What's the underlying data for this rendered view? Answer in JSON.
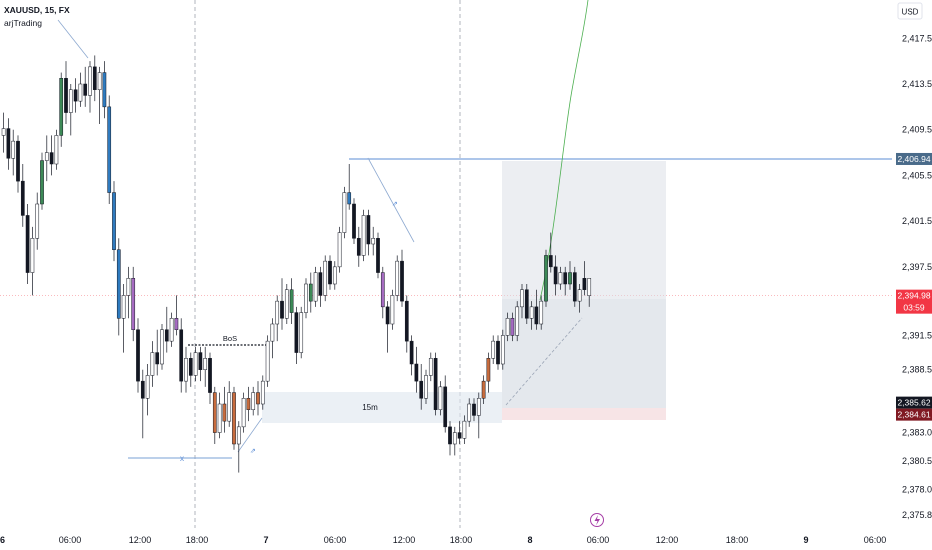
{
  "header": {
    "symbol_line": "XAUUSD, 15, FX",
    "indicator": "arjTrading"
  },
  "currency_button": "USD",
  "price_axis": {
    "ticks": [
      "2,417.50",
      "2,413.50",
      "2,409.50",
      "2,405.50",
      "2,401.50",
      "2,397.50",
      "2,391.50",
      "2,388.50",
      "2,383.00",
      "2,380.50",
      "2,378.00",
      "2,375.80"
    ],
    "tick_values": [
      2417.5,
      2413.5,
      2409.5,
      2405.5,
      2401.5,
      2397.5,
      2391.5,
      2388.5,
      2383.0,
      2380.5,
      2378.0,
      2375.8
    ]
  },
  "time_axis": {
    "labels": [
      "6",
      "06:00",
      "12:00",
      "18:00",
      "7",
      "06:00",
      "12:00",
      "18:00",
      "8",
      "06:00",
      "12:00",
      "18:00",
      "9",
      "06:00"
    ],
    "bold": [
      true,
      false,
      false,
      false,
      true,
      false,
      false,
      false,
      true,
      false,
      false,
      false,
      true,
      false
    ]
  },
  "badges": {
    "target": {
      "text": "2,406.94",
      "value": 2406.94,
      "color": "#4a6b8a"
    },
    "current": {
      "price": "2,394.98",
      "countdown": "03:59",
      "value": 2394.98,
      "color": "#f23645"
    },
    "stop1": {
      "text": "2,385.62",
      "value": 2385.62,
      "color": "#131722"
    },
    "stop2": {
      "text": "2,384.61",
      "value": 2384.61,
      "color": "#801922"
    }
  },
  "annotations": {
    "bos": "BoS",
    "fvg": "15m",
    "x_mark": "x"
  },
  "colors": {
    "up": "#ffffff",
    "down": "#131722",
    "wick": "#131722",
    "blue": "#2f7bbf",
    "purple": "#a66bc1",
    "green": "#3d8a57",
    "orange": "#c86c3d",
    "target_line": "#5b8dd6",
    "projection": "#4caf50"
  },
  "chart_data": {
    "type": "candlestick",
    "symbol": "XAUUSD",
    "timeframe": "15",
    "exchange": "FX",
    "y_range": [
      2375.0,
      2420.5
    ],
    "target_level": 2406.94,
    "current_price": 2394.98,
    "stop_levels": [
      2385.62,
      2384.61
    ],
    "candles": [
      {
        "o": 2409.0,
        "h": 2411.0,
        "l": 2407.5,
        "c": 2409.6,
        "col": "up"
      },
      {
        "o": 2409.6,
        "h": 2410.5,
        "l": 2406.0,
        "c": 2407.0,
        "col": "down"
      },
      {
        "o": 2407.0,
        "h": 2409.5,
        "l": 2405.5,
        "c": 2408.5,
        "col": "up"
      },
      {
        "o": 2408.5,
        "h": 2409.0,
        "l": 2404.0,
        "c": 2405.0,
        "col": "down"
      },
      {
        "o": 2405.0,
        "h": 2406.5,
        "l": 2401.0,
        "c": 2402.0,
        "col": "down"
      },
      {
        "o": 2402.0,
        "h": 2403.0,
        "l": 2396.0,
        "c": 2397.0,
        "col": "down"
      },
      {
        "o": 2397.0,
        "h": 2401.0,
        "l": 2395.0,
        "c": 2400.0,
        "col": "up"
      },
      {
        "o": 2400.0,
        "h": 2404.0,
        "l": 2399.0,
        "c": 2403.0,
        "col": "up"
      },
      {
        "o": 2403.0,
        "h": 2407.5,
        "l": 2402.5,
        "c": 2406.8,
        "col": "green"
      },
      {
        "o": 2406.8,
        "h": 2409.0,
        "l": 2405.0,
        "c": 2407.5,
        "col": "up"
      },
      {
        "o": 2407.5,
        "h": 2409.0,
        "l": 2405.5,
        "c": 2406.5,
        "col": "down"
      },
      {
        "o": 2406.5,
        "h": 2409.5,
        "l": 2406.0,
        "c": 2409.0,
        "col": "up"
      },
      {
        "o": 2409.0,
        "h": 2414.5,
        "l": 2408.0,
        "c": 2414.0,
        "col": "green"
      },
      {
        "o": 2414.0,
        "h": 2415.5,
        "l": 2410.0,
        "c": 2411.0,
        "col": "down"
      },
      {
        "o": 2411.0,
        "h": 2413.5,
        "l": 2409.0,
        "c": 2413.0,
        "col": "up"
      },
      {
        "o": 2413.0,
        "h": 2414.0,
        "l": 2411.0,
        "c": 2412.0,
        "col": "down"
      },
      {
        "o": 2412.0,
        "h": 2414.5,
        "l": 2411.5,
        "c": 2413.5,
        "col": "up"
      },
      {
        "o": 2413.5,
        "h": 2415.0,
        "l": 2411.5,
        "c": 2412.5,
        "col": "down"
      },
      {
        "o": 2412.5,
        "h": 2415.5,
        "l": 2411.0,
        "c": 2415.0,
        "col": "up"
      },
      {
        "o": 2415.0,
        "h": 2416.0,
        "l": 2412.0,
        "c": 2413.0,
        "col": "down"
      },
      {
        "o": 2413.0,
        "h": 2415.0,
        "l": 2410.0,
        "c": 2414.5,
        "col": "up"
      },
      {
        "o": 2414.5,
        "h": 2415.5,
        "l": 2410.5,
        "c": 2411.5,
        "col": "blue"
      },
      {
        "o": 2411.5,
        "h": 2412.5,
        "l": 2403.0,
        "c": 2404.0,
        "col": "blue"
      },
      {
        "o": 2404.0,
        "h": 2405.0,
        "l": 2398.0,
        "c": 2399.0,
        "col": "blue"
      },
      {
        "o": 2399.0,
        "h": 2400.0,
        "l": 2391.5,
        "c": 2393.0,
        "col": "blue"
      },
      {
        "o": 2393.0,
        "h": 2396.0,
        "l": 2390.0,
        "c": 2395.0,
        "col": "up"
      },
      {
        "o": 2395.0,
        "h": 2397.5,
        "l": 2393.0,
        "c": 2396.5,
        "col": "up"
      },
      {
        "o": 2396.5,
        "h": 2397.5,
        "l": 2391.0,
        "c": 2392.0,
        "col": "purple"
      },
      {
        "o": 2392.0,
        "h": 2393.0,
        "l": 2386.5,
        "c": 2387.5,
        "col": "down"
      },
      {
        "o": 2387.5,
        "h": 2388.5,
        "l": 2382.5,
        "c": 2386.0,
        "col": "down"
      },
      {
        "o": 2386.0,
        "h": 2389.0,
        "l": 2384.5,
        "c": 2388.0,
        "col": "up"
      },
      {
        "o": 2388.0,
        "h": 2391.0,
        "l": 2387.0,
        "c": 2390.0,
        "col": "up"
      },
      {
        "o": 2390.0,
        "h": 2392.0,
        "l": 2388.0,
        "c": 2389.0,
        "col": "down"
      },
      {
        "o": 2389.0,
        "h": 2392.5,
        "l": 2388.5,
        "c": 2392.0,
        "col": "up"
      },
      {
        "o": 2392.0,
        "h": 2394.0,
        "l": 2390.0,
        "c": 2391.0,
        "col": "down"
      },
      {
        "o": 2391.0,
        "h": 2393.5,
        "l": 2390.5,
        "c": 2393.0,
        "col": "up"
      },
      {
        "o": 2393.0,
        "h": 2395.0,
        "l": 2391.5,
        "c": 2392.0,
        "col": "purple"
      },
      {
        "o": 2392.0,
        "h": 2393.0,
        "l": 2386.5,
        "c": 2387.5,
        "col": "down"
      },
      {
        "o": 2387.5,
        "h": 2390.5,
        "l": 2386.5,
        "c": 2389.5,
        "col": "up"
      },
      {
        "o": 2389.5,
        "h": 2390.0,
        "l": 2387.0,
        "c": 2388.0,
        "col": "down"
      },
      {
        "o": 2388.0,
        "h": 2390.5,
        "l": 2387.5,
        "c": 2390.0,
        "col": "up"
      },
      {
        "o": 2390.0,
        "h": 2390.5,
        "l": 2387.5,
        "c": 2388.5,
        "col": "down"
      },
      {
        "o": 2388.5,
        "h": 2390.5,
        "l": 2387.0,
        "c": 2389.5,
        "col": "up"
      },
      {
        "o": 2389.5,
        "h": 2390.0,
        "l": 2385.5,
        "c": 2386.5,
        "col": "down"
      },
      {
        "o": 2386.5,
        "h": 2387.0,
        "l": 2382.0,
        "c": 2383.0,
        "col": "orange"
      },
      {
        "o": 2383.0,
        "h": 2386.5,
        "l": 2382.5,
        "c": 2385.5,
        "col": "up"
      },
      {
        "o": 2385.5,
        "h": 2387.0,
        "l": 2383.0,
        "c": 2384.0,
        "col": "orange"
      },
      {
        "o": 2384.0,
        "h": 2387.5,
        "l": 2383.5,
        "c": 2386.5,
        "col": "up"
      },
      {
        "o": 2386.5,
        "h": 2387.0,
        "l": 2381.5,
        "c": 2382.0,
        "col": "orange"
      },
      {
        "o": 2382.0,
        "h": 2384.0,
        "l": 2379.5,
        "c": 2383.5,
        "col": "up"
      },
      {
        "o": 2383.5,
        "h": 2386.5,
        "l": 2383.0,
        "c": 2386.0,
        "col": "up"
      },
      {
        "o": 2386.0,
        "h": 2387.0,
        "l": 2384.0,
        "c": 2385.0,
        "col": "orange"
      },
      {
        "o": 2385.0,
        "h": 2387.0,
        "l": 2384.5,
        "c": 2386.5,
        "col": "up"
      },
      {
        "o": 2386.5,
        "h": 2387.5,
        "l": 2384.5,
        "c": 2385.5,
        "col": "orange"
      },
      {
        "o": 2385.5,
        "h": 2388.0,
        "l": 2385.0,
        "c": 2387.5,
        "col": "up"
      },
      {
        "o": 2387.5,
        "h": 2391.5,
        "l": 2387.0,
        "c": 2391.0,
        "col": "up"
      },
      {
        "o": 2391.0,
        "h": 2393.0,
        "l": 2389.5,
        "c": 2392.5,
        "col": "up"
      },
      {
        "o": 2392.5,
        "h": 2395.0,
        "l": 2391.0,
        "c": 2394.5,
        "col": "up"
      },
      {
        "o": 2394.5,
        "h": 2396.5,
        "l": 2392.0,
        "c": 2393.0,
        "col": "down"
      },
      {
        "o": 2393.0,
        "h": 2396.0,
        "l": 2392.5,
        "c": 2395.5,
        "col": "up"
      },
      {
        "o": 2395.5,
        "h": 2396.5,
        "l": 2392.5,
        "c": 2393.5,
        "col": "green"
      },
      {
        "o": 2393.5,
        "h": 2394.0,
        "l": 2389.0,
        "c": 2390.0,
        "col": "down"
      },
      {
        "o": 2390.0,
        "h": 2394.0,
        "l": 2389.5,
        "c": 2393.5,
        "col": "up"
      },
      {
        "o": 2393.5,
        "h": 2396.5,
        "l": 2393.0,
        "c": 2396.0,
        "col": "up"
      },
      {
        "o": 2396.0,
        "h": 2397.0,
        "l": 2393.5,
        "c": 2394.5,
        "col": "green"
      },
      {
        "o": 2394.5,
        "h": 2397.5,
        "l": 2394.0,
        "c": 2397.0,
        "col": "up"
      },
      {
        "o": 2397.0,
        "h": 2397.5,
        "l": 2394.0,
        "c": 2395.0,
        "col": "down"
      },
      {
        "o": 2395.0,
        "h": 2398.5,
        "l": 2394.5,
        "c": 2398.0,
        "col": "up"
      },
      {
        "o": 2398.0,
        "h": 2398.5,
        "l": 2395.5,
        "c": 2396.0,
        "col": "down"
      },
      {
        "o": 2396.0,
        "h": 2398.0,
        "l": 2395.5,
        "c": 2397.5,
        "col": "up"
      },
      {
        "o": 2397.5,
        "h": 2401.0,
        "l": 2397.0,
        "c": 2400.5,
        "col": "up"
      },
      {
        "o": 2400.5,
        "h": 2404.5,
        "l": 2400.0,
        "c": 2404.0,
        "col": "up"
      },
      {
        "o": 2404.0,
        "h": 2406.5,
        "l": 2402.5,
        "c": 2403.0,
        "col": "blue"
      },
      {
        "o": 2403.0,
        "h": 2403.5,
        "l": 2399.5,
        "c": 2400.0,
        "col": "down"
      },
      {
        "o": 2400.0,
        "h": 2401.0,
        "l": 2397.5,
        "c": 2398.5,
        "col": "down"
      },
      {
        "o": 2398.5,
        "h": 2402.5,
        "l": 2398.0,
        "c": 2402.0,
        "col": "up"
      },
      {
        "o": 2402.0,
        "h": 2402.5,
        "l": 2398.5,
        "c": 2399.5,
        "col": "down"
      },
      {
        "o": 2399.5,
        "h": 2401.0,
        "l": 2398.5,
        "c": 2400.0,
        "col": "up"
      },
      {
        "o": 2400.0,
        "h": 2400.5,
        "l": 2396.5,
        "c": 2397.0,
        "col": "down"
      },
      {
        "o": 2397.0,
        "h": 2397.5,
        "l": 2393.0,
        "c": 2394.0,
        "col": "purple"
      },
      {
        "o": 2394.0,
        "h": 2394.5,
        "l": 2390.0,
        "c": 2392.5,
        "col": "down"
      },
      {
        "o": 2392.5,
        "h": 2395.5,
        "l": 2392.0,
        "c": 2395.0,
        "col": "up"
      },
      {
        "o": 2395.0,
        "h": 2398.5,
        "l": 2394.5,
        "c": 2398.0,
        "col": "up"
      },
      {
        "o": 2398.0,
        "h": 2399.0,
        "l": 2394.0,
        "c": 2394.5,
        "col": "down"
      },
      {
        "o": 2394.5,
        "h": 2395.0,
        "l": 2390.0,
        "c": 2391.0,
        "col": "down"
      },
      {
        "o": 2391.0,
        "h": 2391.5,
        "l": 2388.0,
        "c": 2389.0,
        "col": "down"
      },
      {
        "o": 2389.0,
        "h": 2390.5,
        "l": 2386.5,
        "c": 2387.5,
        "col": "down"
      },
      {
        "o": 2387.5,
        "h": 2389.0,
        "l": 2385.0,
        "c": 2386.0,
        "col": "down"
      },
      {
        "o": 2386.0,
        "h": 2388.5,
        "l": 2385.5,
        "c": 2388.0,
        "col": "up"
      },
      {
        "o": 2388.0,
        "h": 2390.0,
        "l": 2387.5,
        "c": 2389.5,
        "col": "up"
      },
      {
        "o": 2389.5,
        "h": 2390.0,
        "l": 2384.5,
        "c": 2385.0,
        "col": "down"
      },
      {
        "o": 2385.0,
        "h": 2387.5,
        "l": 2384.5,
        "c": 2387.0,
        "col": "up"
      },
      {
        "o": 2387.0,
        "h": 2388.0,
        "l": 2383.0,
        "c": 2383.5,
        "col": "down"
      },
      {
        "o": 2383.5,
        "h": 2384.0,
        "l": 2381.0,
        "c": 2382.0,
        "col": "down"
      },
      {
        "o": 2382.0,
        "h": 2383.5,
        "l": 2381.0,
        "c": 2383.0,
        "col": "up"
      },
      {
        "o": 2383.0,
        "h": 2384.0,
        "l": 2382.0,
        "c": 2382.5,
        "col": "down"
      },
      {
        "o": 2382.5,
        "h": 2384.5,
        "l": 2382.0,
        "c": 2384.0,
        "col": "up"
      },
      {
        "o": 2384.0,
        "h": 2386.0,
        "l": 2383.5,
        "c": 2385.5,
        "col": "up"
      },
      {
        "o": 2385.5,
        "h": 2386.0,
        "l": 2384.0,
        "c": 2384.5,
        "col": "down"
      },
      {
        "o": 2384.5,
        "h": 2386.5,
        "l": 2382.5,
        "c": 2386.0,
        "col": "up"
      },
      {
        "o": 2386.0,
        "h": 2388.0,
        "l": 2385.5,
        "c": 2387.5,
        "col": "orange"
      },
      {
        "o": 2387.5,
        "h": 2390.0,
        "l": 2386.5,
        "c": 2389.5,
        "col": "orange"
      },
      {
        "o": 2389.5,
        "h": 2391.5,
        "l": 2389.0,
        "c": 2391.0,
        "col": "up"
      },
      {
        "o": 2391.0,
        "h": 2391.5,
        "l": 2388.5,
        "c": 2389.0,
        "col": "down"
      },
      {
        "o": 2389.0,
        "h": 2392.0,
        "l": 2388.5,
        "c": 2391.5,
        "col": "up"
      },
      {
        "o": 2391.5,
        "h": 2393.5,
        "l": 2391.0,
        "c": 2393.0,
        "col": "up"
      },
      {
        "o": 2393.0,
        "h": 2393.5,
        "l": 2391.0,
        "c": 2391.5,
        "col": "purple"
      },
      {
        "o": 2391.5,
        "h": 2394.5,
        "l": 2391.0,
        "c": 2394.0,
        "col": "up"
      },
      {
        "o": 2394.0,
        "h": 2396.0,
        "l": 2393.0,
        "c": 2395.5,
        "col": "up"
      },
      {
        "o": 2395.5,
        "h": 2396.0,
        "l": 2392.5,
        "c": 2393.0,
        "col": "down"
      },
      {
        "o": 2393.0,
        "h": 2394.5,
        "l": 2392.0,
        "c": 2394.0,
        "col": "up"
      },
      {
        "o": 2394.0,
        "h": 2395.5,
        "l": 2392.0,
        "c": 2392.5,
        "col": "down"
      },
      {
        "o": 2392.5,
        "h": 2395.0,
        "l": 2392.0,
        "c": 2394.5,
        "col": "up"
      },
      {
        "o": 2394.5,
        "h": 2399.0,
        "l": 2394.0,
        "c": 2398.5,
        "col": "green"
      },
      {
        "o": 2398.5,
        "h": 2400.5,
        "l": 2397.0,
        "c": 2397.5,
        "col": "down"
      },
      {
        "o": 2397.5,
        "h": 2398.5,
        "l": 2395.0,
        "c": 2396.0,
        "col": "down"
      },
      {
        "o": 2396.0,
        "h": 2397.5,
        "l": 2395.5,
        "c": 2397.0,
        "col": "up"
      },
      {
        "o": 2397.0,
        "h": 2397.5,
        "l": 2395.0,
        "c": 2396.0,
        "col": "down"
      },
      {
        "o": 2396.0,
        "h": 2398.0,
        "l": 2395.5,
        "c": 2397.0,
        "col": "green"
      },
      {
        "o": 2397.0,
        "h": 2397.5,
        "l": 2394.0,
        "c": 2394.5,
        "col": "down"
      },
      {
        "o": 2394.5,
        "h": 2396.0,
        "l": 2393.5,
        "c": 2395.5,
        "col": "up"
      },
      {
        "o": 2395.5,
        "h": 2398.0,
        "l": 2395.0,
        "c": 2396.5,
        "col": "down"
      },
      {
        "o": 2396.5,
        "h": 2396.5,
        "l": 2394.0,
        "c": 2394.98,
        "col": "up"
      }
    ]
  }
}
